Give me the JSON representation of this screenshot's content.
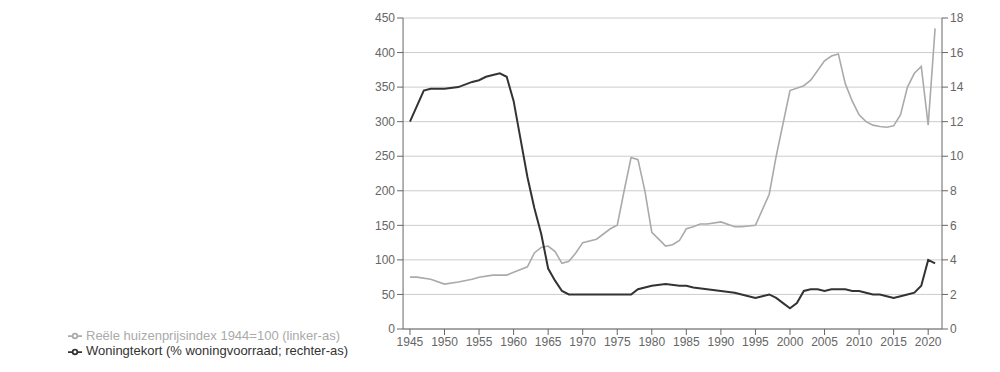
{
  "chart_data": {
    "type": "line",
    "xlim": [
      1944,
      2022
    ],
    "xticks": [
      1945,
      1950,
      1955,
      1960,
      1965,
      1970,
      1975,
      1980,
      1985,
      1990,
      1995,
      2000,
      2005,
      2010,
      2015,
      2020
    ],
    "ylim": [
      0,
      450
    ],
    "yticks": [
      0,
      50,
      100,
      150,
      200,
      250,
      300,
      350,
      400,
      450
    ],
    "y2lim": [
      0,
      18
    ],
    "y2ticks": [
      0,
      2,
      4,
      6,
      8,
      10,
      12,
      14,
      16,
      18
    ],
    "grid": true,
    "legend": "lower left",
    "series": [
      {
        "name": "Reële huizenprijsindex 1944=100 (linker-as)",
        "color": "#aaaaaa",
        "axis": "y",
        "x": [
          1945,
          1946,
          1948,
          1950,
          1952,
          1954,
          1955,
          1957,
          1959,
          1960,
          1962,
          1963,
          1964,
          1965,
          1966,
          1967,
          1968,
          1969,
          1970,
          1972,
          1974,
          1975,
          1976,
          1977,
          1978,
          1979,
          1980,
          1981,
          1982,
          1983,
          1984,
          1985,
          1986,
          1987,
          1988,
          1990,
          1992,
          1993,
          1995,
          1997,
          1998,
          2000,
          2002,
          2003,
          2005,
          2006,
          2007,
          2008,
          2009,
          2010,
          2011,
          2012,
          2013,
          2014,
          2015,
          2016,
          2017,
          2018,
          2019,
          2020,
          2021
        ],
        "values": [
          75,
          75,
          72,
          65,
          68,
          72,
          75,
          78,
          78,
          82,
          90,
          110,
          118,
          120,
          112,
          95,
          98,
          110,
          125,
          130,
          145,
          150,
          200,
          248,
          245,
          200,
          140,
          130,
          120,
          122,
          128,
          145,
          148,
          152,
          152,
          155,
          148,
          148,
          150,
          195,
          250,
          345,
          352,
          360,
          388,
          395,
          398,
          355,
          330,
          310,
          300,
          295,
          293,
          292,
          294,
          310,
          350,
          370,
          380,
          295,
          435
        ]
      },
      {
        "name": "Woningtekort (% woningvoorraad; rechter-as)",
        "color": "#333333",
        "axis": "y2",
        "x": [
          1945,
          1947,
          1948,
          1950,
          1952,
          1954,
          1955,
          1956,
          1957,
          1958,
          1959,
          1960,
          1961,
          1962,
          1963,
          1964,
          1965,
          1966,
          1967,
          1968,
          1970,
          1972,
          1975,
          1977,
          1978,
          1980,
          1982,
          1984,
          1985,
          1986,
          1988,
          1990,
          1992,
          1993,
          1994,
          1995,
          1996,
          1997,
          1998,
          1999,
          2000,
          2001,
          2002,
          2003,
          2004,
          2005,
          2006,
          2007,
          2008,
          2009,
          2010,
          2011,
          2012,
          2013,
          2014,
          2015,
          2016,
          2017,
          2018,
          2019,
          2020,
          2021
        ],
        "values": [
          12.0,
          13.8,
          13.9,
          13.9,
          14.0,
          14.3,
          14.4,
          14.6,
          14.7,
          14.8,
          14.6,
          13.2,
          11.0,
          8.8,
          7.0,
          5.5,
          3.5,
          2.8,
          2.2,
          2.0,
          2.0,
          2.0,
          2.0,
          2.0,
          2.3,
          2.5,
          2.6,
          2.5,
          2.5,
          2.4,
          2.3,
          2.2,
          2.1,
          2.0,
          1.9,
          1.8,
          1.9,
          2.0,
          1.8,
          1.5,
          1.2,
          1.5,
          2.2,
          2.3,
          2.3,
          2.2,
          2.3,
          2.3,
          2.3,
          2.2,
          2.2,
          2.1,
          2.0,
          2.0,
          1.9,
          1.8,
          1.9,
          2.0,
          2.1,
          2.5,
          4.0,
          3.8
        ]
      }
    ]
  }
}
